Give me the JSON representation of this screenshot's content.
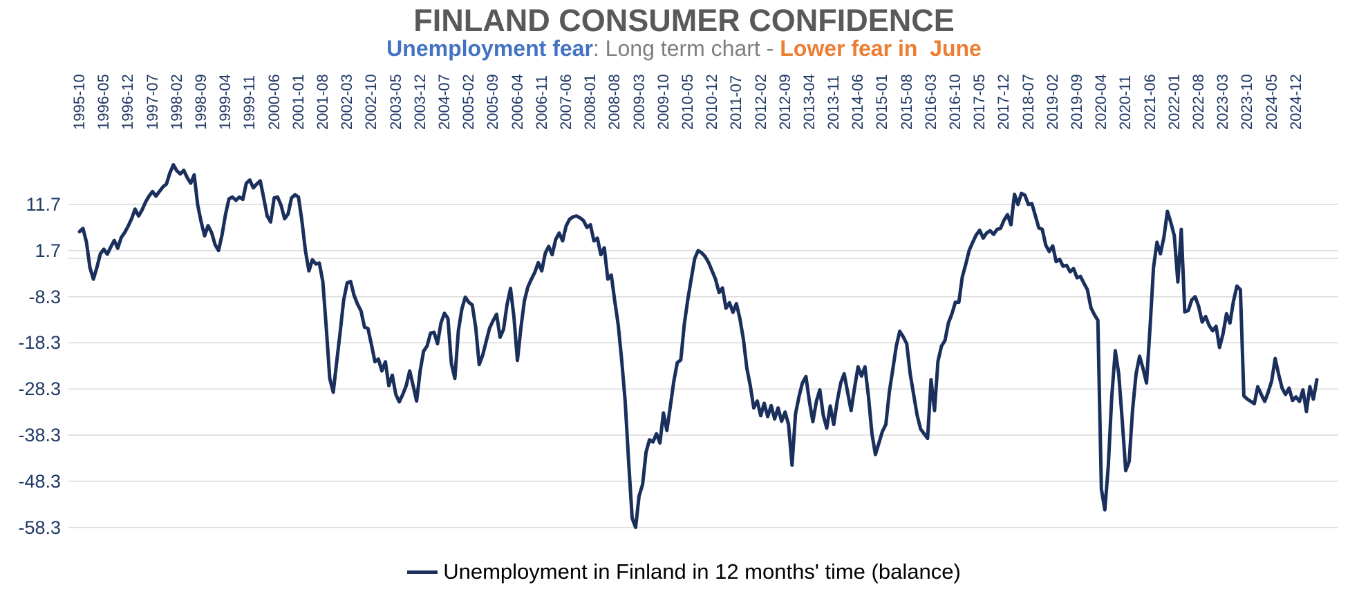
{
  "title": "FINLAND CONSUMER CONFIDENCE",
  "subtitle": {
    "part_blue": "Unemployment fear",
    "part_gray": ": Long term chart - ",
    "part_orange": "Lower fear in  June"
  },
  "legend": {
    "label": "Unemployment in Finland in 12 months' time (balance)",
    "swatch_color": "#1A2F5C"
  },
  "colors": {
    "line": "#1A2F5C",
    "axis_labels": "#1F3864",
    "gridline": "#D9D9D9",
    "title_gray": "#595959",
    "subtitle_blue": "#4472C4",
    "subtitle_orange": "#ED7D31"
  },
  "chart_data": {
    "type": "line",
    "title": "FINLAND CONSUMER CONFIDENCE",
    "subtitle": "Unemployment fear: Long term chart - Lower fear in  June",
    "legend_position": "bottom",
    "grid": true,
    "x_start": "1995-10",
    "x_end": "2025-06",
    "frequency": "monthly",
    "x_tick_interval_months": 7,
    "x_tick_labels": [
      "1995-10",
      "1996-05",
      "1996-12",
      "1997-07",
      "1998-02",
      "1998-09",
      "1999-04",
      "1999-11",
      "2000-06",
      "2001-01",
      "2001-08",
      "2002-03",
      "2002-10",
      "2003-05",
      "2003-12",
      "2004-07",
      "2005-02",
      "2005-09",
      "2006-04",
      "2006-11",
      "2007-06",
      "2008-01",
      "2008-08",
      "2009-03",
      "2009-10",
      "2010-05",
      "2010-12",
      "2011-07",
      "2012-02",
      "2012-09",
      "2013-04",
      "2013-11",
      "2014-06",
      "2015-01",
      "2015-08",
      "2016-03",
      "2016-10",
      "2017-05",
      "2017-12",
      "2018-07",
      "2019-02",
      "2019-09",
      "2020-04",
      "2020-11",
      "2021-06",
      "2022-01",
      "2022-08",
      "2023-03",
      "2023-10",
      "2024-05",
      "2024-12"
    ],
    "y_tick_labels": [
      "11.7",
      "1.7",
      "-8.3",
      "-18.3",
      "-28.3",
      "-38.3",
      "-48.3",
      "-58.3"
    ],
    "y_ticks": [
      11.7,
      1.7,
      -8.3,
      -18.3,
      -28.3,
      -38.3,
      -48.3,
      -58.3
    ],
    "zero_line": 0,
    "ylim": [
      -58.3,
      21.7
    ],
    "series": [
      {
        "name": "Unemployment in Finland in 12 months' time (balance)",
        "color": "#1A2F5C",
        "values": [
          5.8,
          6.5,
          3.5,
          -2,
          -4.5,
          -2,
          1,
          2,
          0.9,
          2.5,
          3.9,
          2.2,
          4.5,
          5.6,
          7,
          8.6,
          10.7,
          9.2,
          10.5,
          12.2,
          13.5,
          14.5,
          13.5,
          14.5,
          15.5,
          16.1,
          18.5,
          20.3,
          19,
          18.3,
          19.1,
          17.5,
          16.3,
          18.1,
          11.6,
          7.9,
          4.9,
          7.1,
          5.6,
          3,
          1.7,
          5.1,
          9.5,
          12.9,
          13.3,
          12.6,
          13.3,
          12.8,
          16.3,
          17,
          15.3,
          16.1,
          16.8,
          13.1,
          9.2,
          7.9,
          13.1,
          13.3,
          11.5,
          8.6,
          9.6,
          13.1,
          13.8,
          13.3,
          8.1,
          1.7,
          -2.7,
          -0.3,
          -1.2,
          -1,
          -5,
          -15,
          -26,
          -29,
          -22.4,
          -16,
          -9.1,
          -5.3,
          -5,
          -8,
          -9.9,
          -11.4,
          -14.9,
          -15.2,
          -18.7,
          -22.4,
          -21.8,
          -24.4,
          -22.4,
          -27.6,
          -25.3,
          -29.5,
          -31.1,
          -29.5,
          -27.6,
          -24.4,
          -27.6,
          -30.9,
          -24.4,
          -20.1,
          -19,
          -16.2,
          -16,
          -18.5,
          -14,
          -11.9,
          -13,
          -22.8,
          -26,
          -15.7,
          -11,
          -8.4,
          -9.5,
          -10.1,
          -15,
          -23,
          -21,
          -18,
          -15.1,
          -13.5,
          -12.1,
          -17.1,
          -15.4,
          -10,
          -6.5,
          -12.7,
          -22.1,
          -15,
          -9.2,
          -6.2,
          -4.5,
          -3,
          -0.9,
          -2.7,
          1.1,
          2.6,
          0.8,
          4.1,
          5.5,
          3.8,
          7,
          8.5,
          9,
          9.2,
          8.8,
          8.2,
          6.7,
          7.3,
          3.8,
          4.4,
          0.8,
          2.3,
          -4.5,
          -3.6,
          -9.2,
          -14.5,
          -22.1,
          -31,
          -44,
          -56.3,
          -58.3,
          -51.5,
          -49,
          -42,
          -39.3,
          -39.8,
          -38,
          -40,
          -33.5,
          -37.3,
          -32,
          -26.6,
          -22.6,
          -22,
          -14.3,
          -9,
          -4.5,
          0,
          1.7,
          1.2,
          0.4,
          -0.9,
          -2.7,
          -4.5,
          -7.4,
          -6.4,
          -10.8,
          -9.6,
          -11.7,
          -9.8,
          -13,
          -17.5,
          -23.8,
          -27.6,
          -32.4,
          -30.9,
          -34.1,
          -31.4,
          -34.3,
          -31.9,
          -34.8,
          -32.4,
          -35.3,
          -33.3,
          -36,
          -44.8,
          -33.7,
          -30,
          -27,
          -25.6,
          -31,
          -35.4,
          -31,
          -28.5,
          -34,
          -36.8,
          -32,
          -36,
          -31,
          -27,
          -25,
          -29,
          -33,
          -28,
          -23.5,
          -25.5,
          -23.5,
          -30,
          -38,
          -42.5,
          -40,
          -37.5,
          -36,
          -29,
          -24,
          -19,
          -15.8,
          -17,
          -18.5,
          -25,
          -29.5,
          -34,
          -37,
          -38,
          -39,
          -26.3,
          -33,
          -22.3,
          -19,
          -17.8,
          -14,
          -12,
          -9.5,
          -9.5,
          -4,
          -1.2,
          1.8,
          3.5,
          5.1,
          6.1,
          4.4,
          5.5,
          6,
          5.2,
          6.3,
          6.5,
          8.3,
          9.5,
          7.3,
          13.9,
          11.7,
          14.1,
          13.7,
          11.7,
          11.9,
          9.3,
          6.6,
          6.3,
          2.9,
          1.5,
          2.7,
          -0.7,
          -0.2,
          -1.7,
          -1.5,
          -2.9,
          -2.2,
          -4.2,
          -3.9,
          -5.4,
          -6.8,
          -10.7,
          -12.2,
          -13.4,
          -50,
          -54.5,
          -45,
          -30,
          -20,
          -25,
          -35,
          -46,
          -44,
          -32.7,
          -25,
          -21.2,
          -23.9,
          -27,
          -15,
          -2,
          3.5,
          1,
          4.6,
          10.2,
          7.8,
          4.9,
          -5.1,
          6.3,
          -11.6,
          -11.3,
          -9,
          -8.3,
          -10.4,
          -13.8,
          -12.6,
          -14.5,
          -15.7,
          -14.7,
          -19.3,
          -16.4,
          -12,
          -14,
          -9.3,
          -6,
          -6.8,
          -29.8,
          -30.5,
          -31,
          -31.5,
          -27.8,
          -29.5,
          -31,
          -29,
          -26.6,
          -21.7,
          -25.1,
          -28.1,
          -29.5,
          -28.1,
          -30.8,
          -30,
          -31,
          -28.5,
          -33.2,
          -27.8,
          -30.5,
          -26.3
        ]
      }
    ]
  }
}
